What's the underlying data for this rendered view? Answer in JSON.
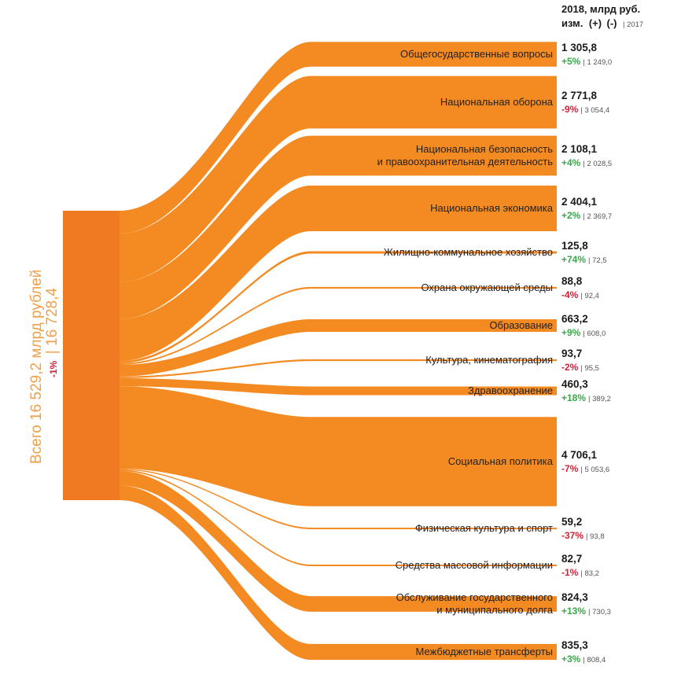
{
  "colors": {
    "flow": "#f48a22",
    "source": "#f07a22",
    "positive": "#3aa84a",
    "negative": "#d0213a",
    "total_text": "#f0a04a",
    "text": "#222222"
  },
  "header": {
    "line1": "2018, млрд руб.",
    "line2_prefix": "изм.",
    "plus": "(+)",
    "minus": "(-)",
    "year": "| 2017"
  },
  "total": {
    "text": "Всего 16 529,2 млрд рублей",
    "change": "-1%",
    "prev": "| 16 728,4"
  },
  "chart_data": {
    "type": "sankey",
    "source": "Всего",
    "total_2018": 16529.2,
    "total_2017": 16728.4,
    "total_change": "-1%",
    "units": "млрд руб.",
    "flows": [
      {
        "name": "Общегосударственные вопросы",
        "value": 1305.8,
        "value_label": "1 305,8",
        "change": "+5%",
        "prev": 1249.0,
        "prev_label": "| 1 249,0"
      },
      {
        "name": "Национальная оборона",
        "value": 2771.8,
        "value_label": "2 771,8",
        "change": "-9%",
        "prev": 3054.4,
        "prev_label": "| 3 054,4"
      },
      {
        "name": "Национальная безопасность и правоохранительная деятельность",
        "lines": [
          "Национальная безопасность",
          "и правоохранительная деятельность"
        ],
        "value": 2108.1,
        "value_label": "2 108,1",
        "change": "+4%",
        "prev": 2028.5,
        "prev_label": "| 2 028,5"
      },
      {
        "name": "Национальная экономика",
        "value": 2404.1,
        "value_label": "2 404,1",
        "change": "+2%",
        "prev": 2369.7,
        "prev_label": "| 2 369,7"
      },
      {
        "name": "Жилищно-коммунальное хозяйство",
        "value": 125.8,
        "value_label": "125,8",
        "change": "+74%",
        "prev": 72.5,
        "prev_label": "| 72,5"
      },
      {
        "name": "Охрана окружающей среды",
        "value": 88.8,
        "value_label": "88,8",
        "change": "-4%",
        "prev": 92.4,
        "prev_label": "| 92,4"
      },
      {
        "name": "Образование",
        "value": 663.2,
        "value_label": "663,2",
        "change": "+9%",
        "prev": 608.0,
        "prev_label": "| 608,0"
      },
      {
        "name": "Культура, кинематография",
        "value": 93.7,
        "value_label": "93,7",
        "change": "-2%",
        "prev": 95.5,
        "prev_label": "| 95,5"
      },
      {
        "name": "Здравоохранение",
        "value": 460.3,
        "value_label": "460,3",
        "change": "+18%",
        "prev": 389.2,
        "prev_label": "| 389,2"
      },
      {
        "name": "Социальная политика",
        "value": 4706.1,
        "value_label": "4 706,1",
        "change": "-7%",
        "prev": 5053.6,
        "prev_label": "| 5 053,6"
      },
      {
        "name": "Физическая культура и спорт",
        "value": 59.2,
        "value_label": "59,2",
        "change": "-37%",
        "prev": 93.8,
        "prev_label": "| 93,8"
      },
      {
        "name": "Средства массовой информации",
        "value": 82.7,
        "value_label": "82,7",
        "change": "-1%",
        "prev": 83.2,
        "prev_label": "| 83,2"
      },
      {
        "name": "Обслуживание государственного и муниципального долга",
        "lines": [
          "Обслуживание государственного",
          "и муниципального долга"
        ],
        "value": 824.3,
        "value_label": "824,3",
        "change": "+13%",
        "prev": 730.3,
        "prev_label": "| 730,3"
      },
      {
        "name": "Межбюджетные трансферты",
        "value": 835.3,
        "value_label": "835,3",
        "change": "+3%",
        "prev": 808.4,
        "prev_label": "| 808,4"
      }
    ]
  }
}
